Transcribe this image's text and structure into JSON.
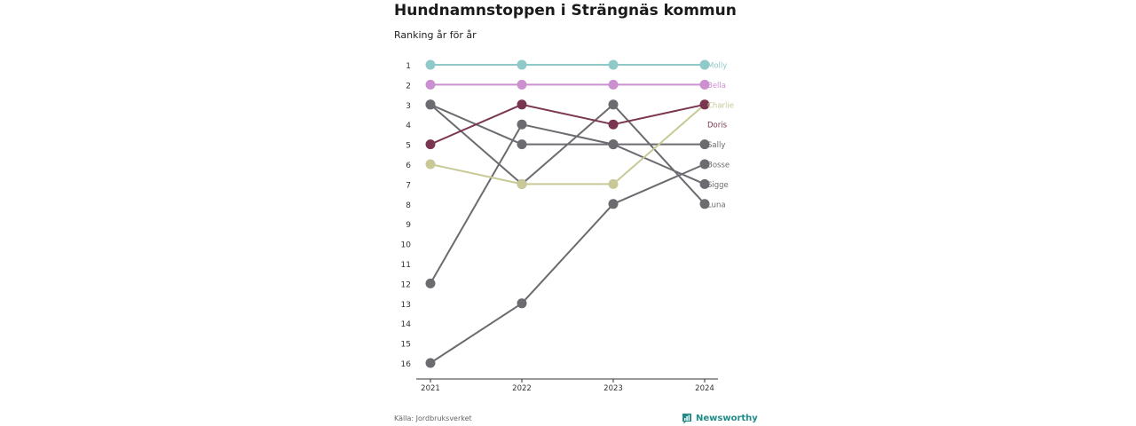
{
  "title": "Hundnamnstoppen i Strängnäs kommun",
  "subtitle": "Ranking år för år",
  "source": "Källa: Jordbruksverket",
  "brand": "Newsworthy",
  "brand_color": "#1f8c8a",
  "chart_data": {
    "type": "line",
    "x": [
      "2021",
      "2022",
      "2023",
      "2024"
    ],
    "y_ticks": [
      1,
      2,
      3,
      4,
      5,
      6,
      7,
      8,
      9,
      10,
      11,
      12,
      13,
      14,
      15,
      16
    ],
    "ylim": [
      1,
      16
    ],
    "y_inverted": true,
    "grid": false,
    "series": [
      {
        "name": "Luna",
        "values": [
          3,
          7,
          3,
          8
        ],
        "color": "#6b6b70"
      },
      {
        "name": "Sigge",
        "values": [
          3,
          5,
          5,
          7
        ],
        "color": "#6b6b70"
      },
      {
        "name": "Sally",
        "values": [
          12,
          4,
          5,
          5
        ],
        "color": "#6b6b70"
      },
      {
        "name": "Bosse",
        "values": [
          16,
          13,
          8,
          6
        ],
        "color": "#6b6b70"
      },
      {
        "name": "Charlie",
        "values": [
          6,
          7,
          7,
          3
        ],
        "color": "#c8c996"
      },
      {
        "name": "Doris",
        "values": [
          5,
          3,
          4,
          3
        ],
        "color": "#7a3650"
      },
      {
        "name": "Bella",
        "values": [
          2,
          2,
          2,
          2
        ],
        "color": "#cc8fd0"
      },
      {
        "name": "Molly",
        "values": [
          1,
          1,
          1,
          1
        ],
        "color": "#8fcac9"
      }
    ],
    "labels": [
      {
        "name": "Molly",
        "rank": 1,
        "color": "#8fcac9"
      },
      {
        "name": "Bella",
        "rank": 2,
        "color": "#cc8fd0"
      },
      {
        "name": "Charlie",
        "rank": 3,
        "color": "#c8c996"
      },
      {
        "name": "Doris",
        "rank": 4,
        "color": "#7a3650"
      },
      {
        "name": "Sally",
        "rank": 5,
        "color": "#6b6b70"
      },
      {
        "name": "Bosse",
        "rank": 6,
        "color": "#6b6b70"
      },
      {
        "name": "Sigge",
        "rank": 7,
        "color": "#6b6b70"
      },
      {
        "name": "Luna",
        "rank": 8,
        "color": "#6b6b70"
      }
    ]
  }
}
